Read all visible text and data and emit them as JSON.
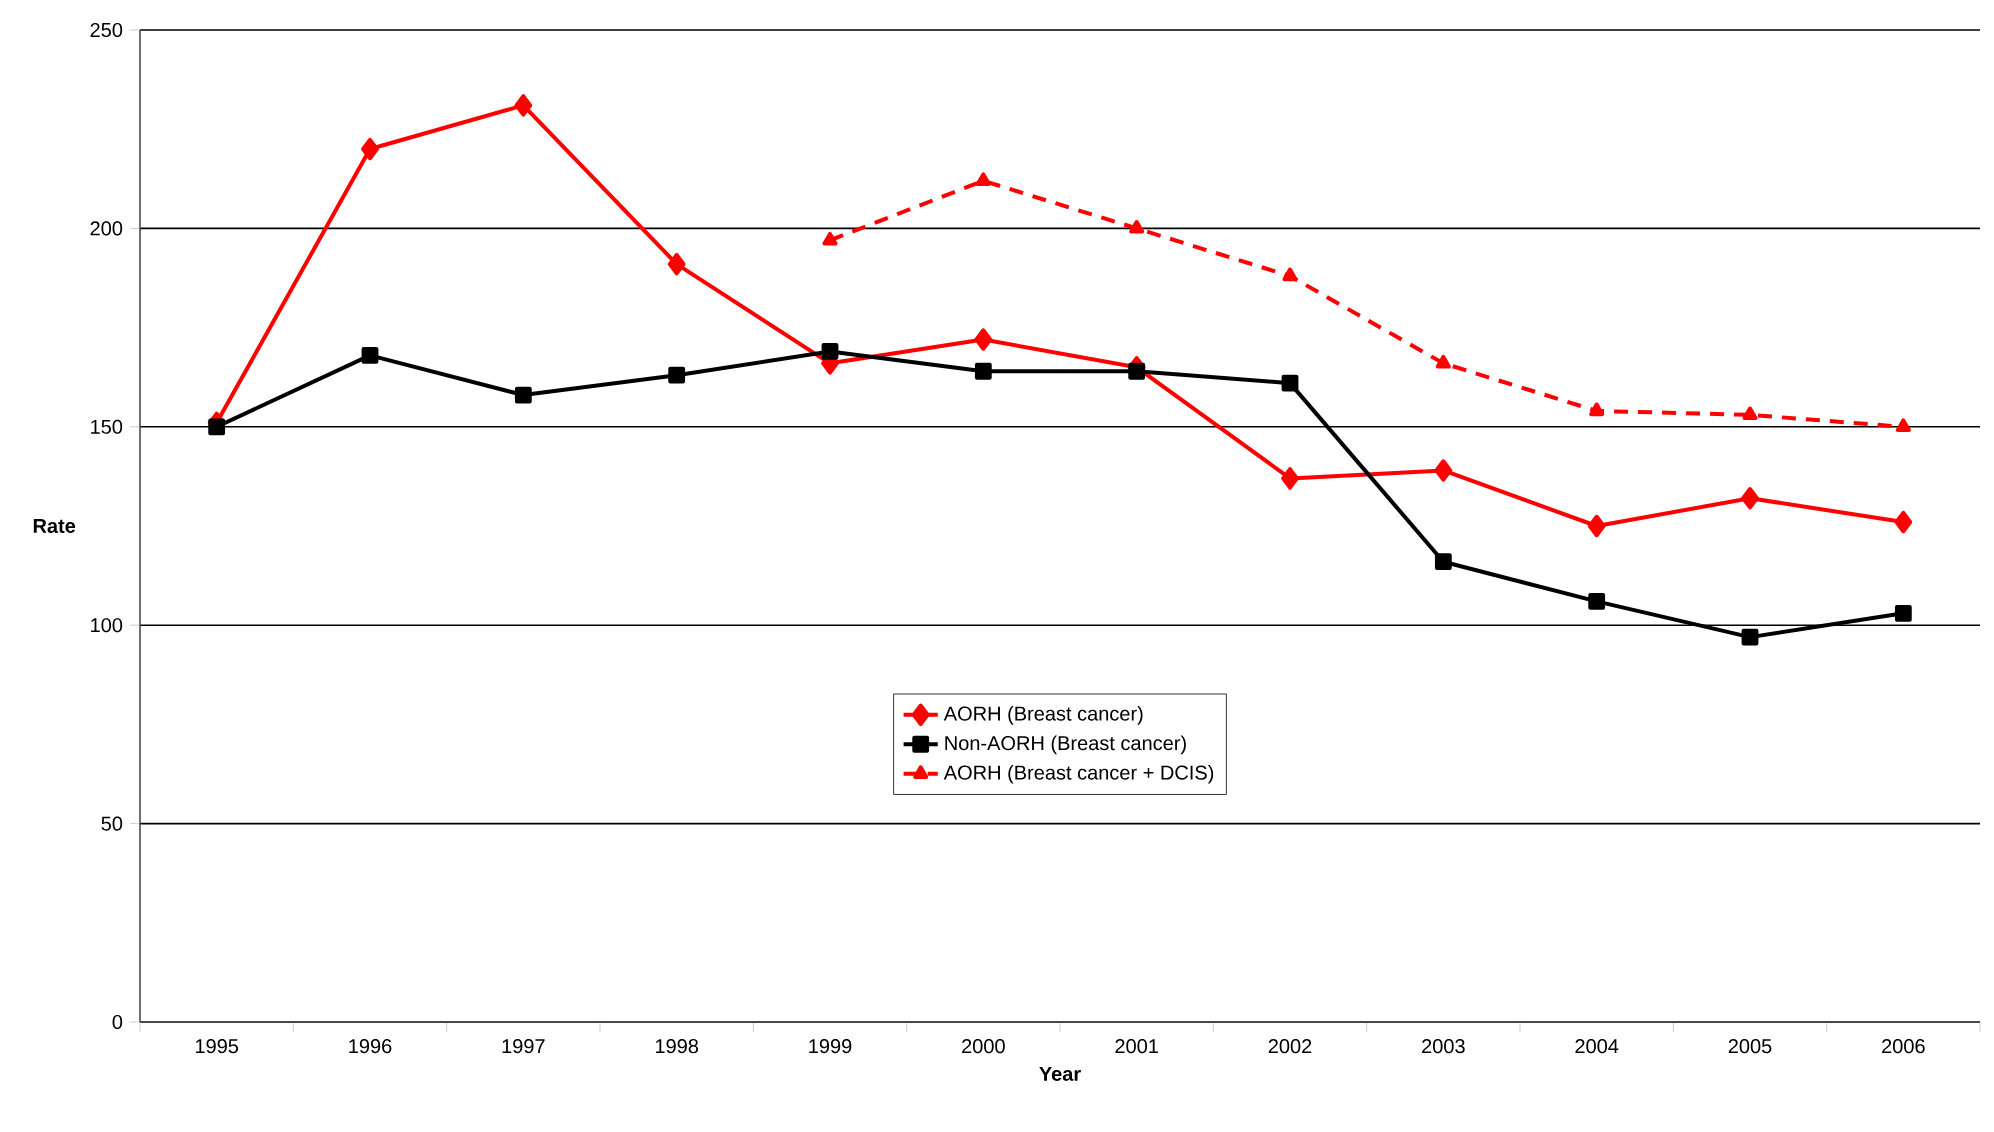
{
  "chart_data": {
    "type": "line",
    "xlabel": "Year",
    "ylabel": "Rate",
    "categories": [
      "1995",
      "1996",
      "1997",
      "1998",
      "1999",
      "2000",
      "2001",
      "2002",
      "2003",
      "2004",
      "2005",
      "2006"
    ],
    "series": [
      {
        "name": "AORH (Breast cancer)",
        "color": "#ff0000",
        "marker": "diamond",
        "line_style": "solid",
        "values": [
          151,
          220,
          231,
          191,
          166,
          172,
          165,
          137,
          139,
          125,
          132,
          126
        ]
      },
      {
        "name": "Non-AORH (Breast cancer)",
        "color": "#000000",
        "marker": "square",
        "line_style": "solid",
        "values": [
          150,
          168,
          158,
          163,
          169,
          164,
          164,
          161,
          116,
          106,
          97,
          103
        ]
      },
      {
        "name": "AORH (Breast cancer + DCIS)",
        "color": "#ff0000",
        "marker": "triangle",
        "line_style": "dashed",
        "values": [
          null,
          null,
          null,
          null,
          197,
          212,
          200,
          188,
          166,
          154,
          153,
          150
        ]
      }
    ],
    "ylim": [
      0,
      250
    ],
    "yticks": [
      0,
      50,
      100,
      150,
      200,
      250
    ],
    "grid": "y",
    "legend": "center"
  }
}
